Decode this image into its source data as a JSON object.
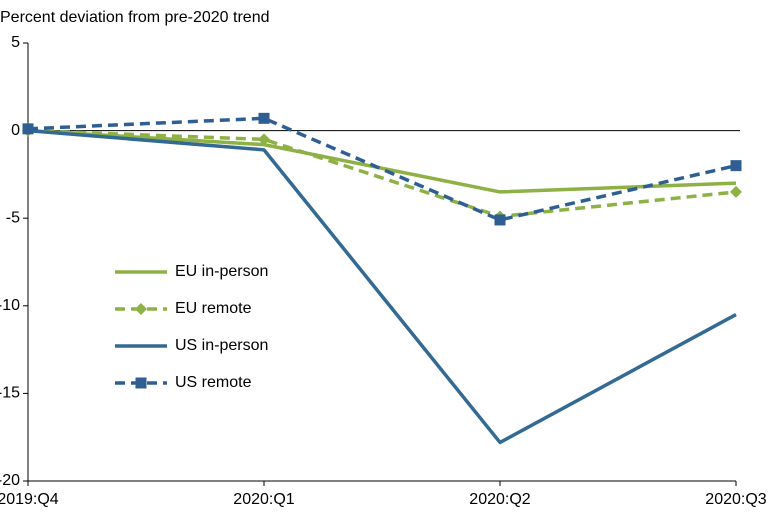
{
  "chart_data": {
    "type": "line",
    "y_label": "Percent deviation from pre-2020 trend",
    "categories": [
      "2019:Q4",
      "2020:Q1",
      "2020:Q2",
      "2020:Q3"
    ],
    "series": [
      {
        "name": "EU in-person",
        "color": "#8db144",
        "style": "solid",
        "marker": "none",
        "values": [
          0,
          -0.8,
          -3.5,
          -3.0
        ]
      },
      {
        "name": "EU remote",
        "color": "#8db144",
        "style": "dashed",
        "marker": "diamond",
        "values": [
          0,
          -0.5,
          -4.9,
          -3.5
        ]
      },
      {
        "name": "US in-person",
        "color": "#336a94",
        "style": "solid",
        "marker": "none",
        "values": [
          0,
          -1.1,
          -17.8,
          -10.5
        ]
      },
      {
        "name": "US remote",
        "color": "#2f5f92",
        "style": "dashed",
        "marker": "square",
        "values": [
          0.1,
          0.7,
          -5.1,
          -2.0
        ]
      }
    ],
    "ylim": [
      -20,
      5
    ],
    "yticks": [
      -20,
      -15,
      -10,
      -5,
      0,
      5
    ],
    "grid": false,
    "legend": "left"
  }
}
